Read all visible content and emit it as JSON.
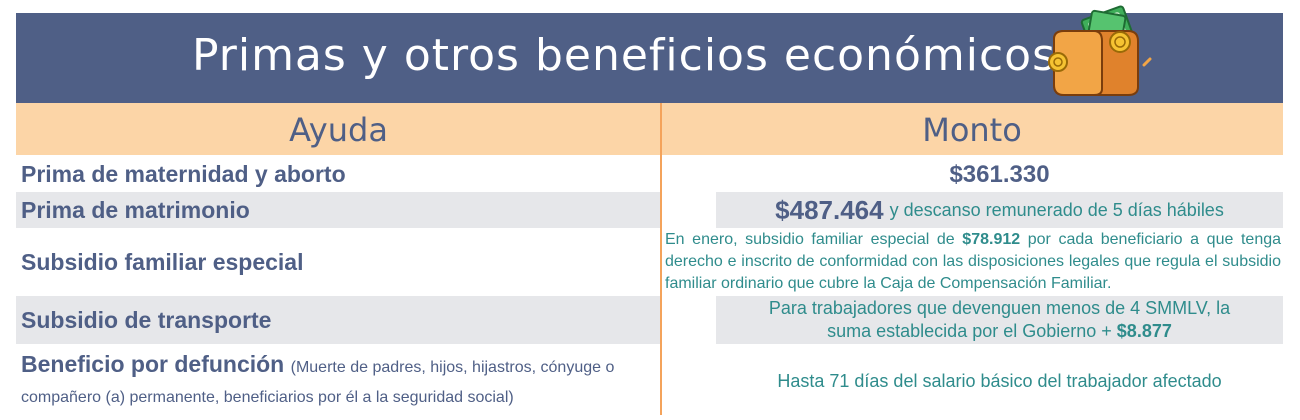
{
  "header": {
    "title": "Primas y otros beneficios económicos"
  },
  "columns": {
    "left": "Ayuda",
    "right": "Monto"
  },
  "rows": [
    {
      "ayuda": "Prima de maternidad y aborto",
      "monto": "$361.330"
    },
    {
      "ayuda": "Prima de matrimonio",
      "monto_amount": "$487.464",
      "monto_text": "y descanso remunerado de 5 días hábiles"
    },
    {
      "ayuda": "Subsidio familiar especial",
      "monto_pre": "En enero, subsidio familiar especial de ",
      "monto_amount": "$78.912",
      "monto_post": " por cada beneficiario a que tenga derecho e inscrito de conformidad con las disposiciones legales que regula el subsidio familiar ordinario que cubre la Caja de Compensación Familiar."
    },
    {
      "ayuda": "Subsidio de transporte",
      "monto_pre": "Para trabajadores que devenguen menos de 4 SMMLV, la suma establecida por el Gobierno + ",
      "monto_amount": "$8.877"
    },
    {
      "ayuda": "Beneficio por defunción",
      "ayuda_note": "(Muerte de padres, hijos, hijastros, cónyuge o compañero (a) permanente, beneficiarios por él a la seguridad social)",
      "monto": "Hasta 71 días del salario básico del trabajador afectado"
    }
  ],
  "icons": {
    "wallet": "wallet-money-icon"
  },
  "colors": {
    "header_bg": "#4f5f86",
    "column_header_bg": "#fcd5a7",
    "label_text": "#4f5f86",
    "value_text": "#2f8c8c",
    "shaded_row": "#e6e7ea",
    "divider": "#f4a35b"
  }
}
